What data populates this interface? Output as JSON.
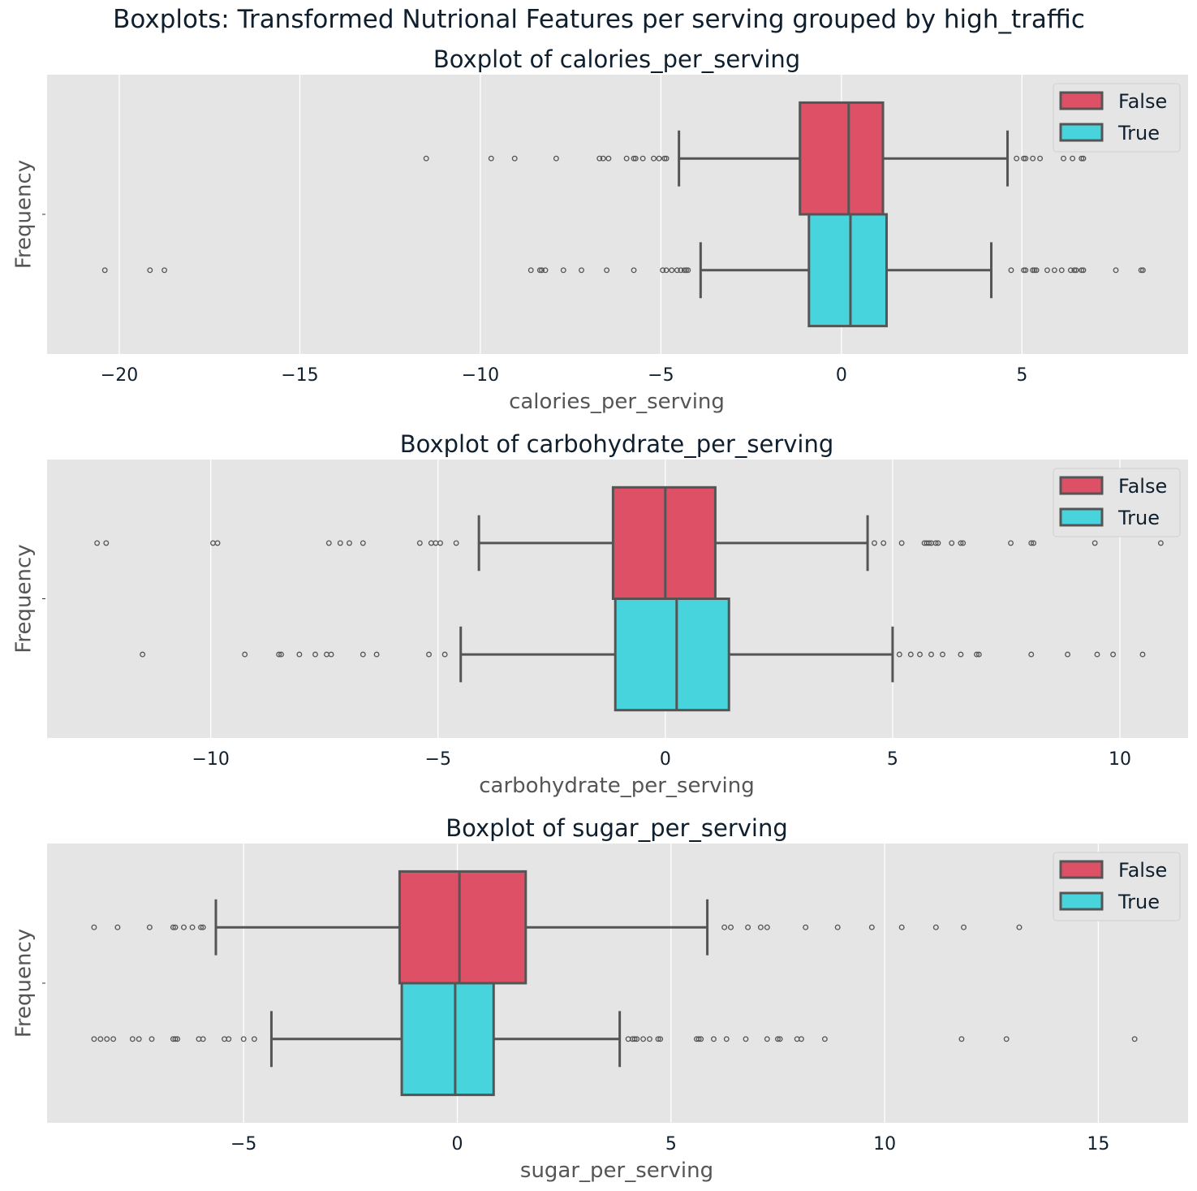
{
  "suptitle": "Boxplots: Transformed Nutrional Features per serving grouped by high_traffic",
  "colors": {
    "False": "#dd5066",
    "True": "#48d4dc",
    "edge": "#555555",
    "panel_bg": "#e5e5e5",
    "grid": "#ffffff"
  },
  "chart_data": [
    {
      "type": "boxplot",
      "title": "Boxplot of calories_per_serving",
      "xlabel": "calories_per_serving",
      "ylabel": "Frequency",
      "xlim": [
        -22,
        9.6
      ],
      "xticks": [
        -20,
        -15,
        -10,
        -5,
        0,
        5
      ],
      "grid": true,
      "legend": {
        "placement": "upper right",
        "entries": [
          "False",
          "True"
        ]
      },
      "series": [
        {
          "name": "False",
          "whisker_low": -4.5,
          "q1": -1.15,
          "median": 0.2,
          "q3": 1.15,
          "whisker_high": 4.6,
          "outliers": [
            -11.5,
            -9.7,
            -9.05,
            -7.9,
            -6.7,
            -6.6,
            -6.45,
            -5.95,
            -5.75,
            -5.7,
            -5.5,
            -5.2,
            -5.05,
            -4.9,
            -4.85,
            4.85,
            5.05,
            5.1,
            5.3,
            5.5,
            6.15,
            6.4,
            6.65,
            6.7
          ]
        },
        {
          "name": "True",
          "whisker_low": -3.9,
          "q1": -0.9,
          "median": 0.25,
          "q3": 1.25,
          "whisker_high": 4.15,
          "outliers": [
            -20.4,
            -19.15,
            -18.75,
            -8.6,
            -8.35,
            -8.3,
            -8.2,
            -7.7,
            -7.2,
            -6.5,
            -5.75,
            -4.95,
            -4.85,
            -4.7,
            -4.55,
            -4.45,
            -4.35,
            -4.3,
            -4.25,
            4.7,
            5.05,
            5.1,
            5.3,
            5.35,
            5.4,
            5.7,
            5.9,
            6.1,
            6.35,
            6.45,
            6.5,
            6.65,
            6.7,
            7.6,
            8.3,
            8.35
          ]
        }
      ]
    },
    {
      "type": "boxplot",
      "title": "Boxplot of carbohydrate_per_serving",
      "xlabel": "carbohydrate_per_serving",
      "ylabel": "Frequency",
      "xlim": [
        -13.6,
        11.5
      ],
      "xticks": [
        -10,
        -5,
        0,
        5,
        10
      ],
      "grid": true,
      "legend": {
        "placement": "upper right",
        "entries": [
          "False",
          "True"
        ]
      },
      "series": [
        {
          "name": "False",
          "whisker_low": -4.1,
          "q1": -1.15,
          "median": 0.0,
          "q3": 1.1,
          "whisker_high": 4.45,
          "outliers": [
            -12.5,
            -12.3,
            -9.95,
            -9.85,
            -7.4,
            -7.15,
            -6.95,
            -6.65,
            -5.4,
            -5.15,
            -5.05,
            -4.95,
            -4.6,
            4.6,
            4.8,
            5.2,
            5.7,
            5.75,
            5.8,
            5.85,
            5.95,
            6.0,
            6.3,
            6.5,
            6.55,
            7.6,
            8.05,
            8.1,
            9.45,
            10.9
          ]
        },
        {
          "name": "True",
          "whisker_low": -4.5,
          "q1": -1.1,
          "median": 0.25,
          "q3": 1.4,
          "whisker_high": 5.0,
          "outliers": [
            -11.5,
            -9.25,
            -8.5,
            -8.45,
            -8.05,
            -7.7,
            -7.45,
            -7.35,
            -6.65,
            -6.35,
            -5.2,
            -4.85,
            5.15,
            5.4,
            5.6,
            5.85,
            6.1,
            6.5,
            6.85,
            6.9,
            8.05,
            8.85,
            9.5,
            9.85,
            10.5
          ]
        }
      ]
    },
    {
      "type": "boxplot",
      "title": "Boxplot of sugar_per_serving",
      "xlabel": "sugar_per_serving",
      "ylabel": "Frequency",
      "xlim": [
        -9.6,
        17.1
      ],
      "xticks": [
        -5,
        0,
        5,
        10,
        15
      ],
      "grid": true,
      "legend": {
        "placement": "upper right",
        "entries": [
          "False",
          "True"
        ]
      },
      "series": [
        {
          "name": "False",
          "whisker_low": -5.65,
          "q1": -1.35,
          "median": 0.05,
          "q3": 1.6,
          "whisker_high": 5.85,
          "outliers": [
            -8.5,
            -7.95,
            -7.2,
            -6.65,
            -6.6,
            -6.4,
            -6.2,
            -6.0,
            -5.95,
            6.25,
            6.4,
            6.8,
            7.1,
            7.25,
            8.15,
            8.9,
            9.7,
            10.4,
            11.2,
            11.85,
            13.15
          ]
        },
        {
          "name": "True",
          "whisker_low": -4.35,
          "q1": -1.3,
          "median": -0.05,
          "q3": 0.85,
          "whisker_high": 3.8,
          "outliers": [
            -8.5,
            -8.35,
            -8.2,
            -8.05,
            -7.6,
            -7.45,
            -7.15,
            -6.65,
            -6.6,
            -6.55,
            -6.05,
            -5.95,
            -5.45,
            -5.35,
            -5.0,
            -4.75,
            4.0,
            4.1,
            4.15,
            4.2,
            4.35,
            4.5,
            4.7,
            4.75,
            5.6,
            5.65,
            5.7,
            6.0,
            6.3,
            6.75,
            7.25,
            7.5,
            7.55,
            7.95,
            8.05,
            8.6,
            11.8,
            12.85,
            15.85
          ]
        }
      ]
    }
  ]
}
